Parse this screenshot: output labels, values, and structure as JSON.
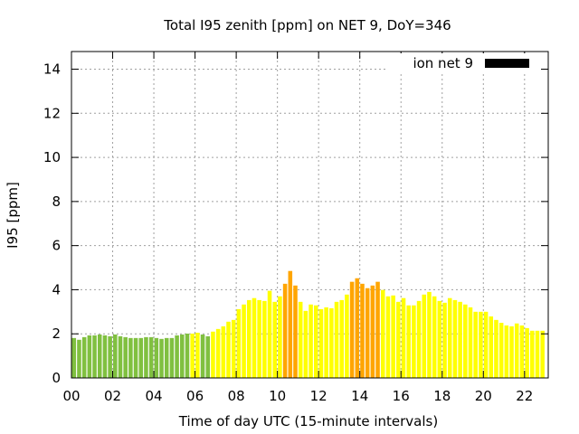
{
  "chart_data": {
    "type": "bar",
    "title": "Total I95 zenith [ppm] on NET 9, DoY=346",
    "xlabel": "Time of day UTC (15-minute intervals)",
    "ylabel": "I95 [ppm]",
    "ylim": [
      0,
      14.8
    ],
    "xlim_hours": [
      0,
      23.15
    ],
    "grid": true,
    "legend": {
      "label": "ion net 9",
      "placement": "top-right",
      "color": "#000000"
    },
    "yticks": [
      "0",
      "2",
      "4",
      "6",
      "8",
      "10",
      "12",
      "14"
    ],
    "xticks": [
      "00",
      "02",
      "04",
      "06",
      "08",
      "10",
      "12",
      "14",
      "16",
      "18",
      "20",
      "22"
    ],
    "interval_hours": 0.25,
    "palette": {
      "green": "#80c040",
      "yellow": "#ffff00",
      "orange": "#ffa500"
    },
    "values": [
      1.81,
      1.73,
      1.85,
      1.93,
      1.93,
      1.97,
      1.93,
      1.89,
      1.97,
      1.89,
      1.85,
      1.81,
      1.81,
      1.81,
      1.85,
      1.85,
      1.81,
      1.77,
      1.81,
      1.81,
      1.93,
      1.97,
      2.01,
      2.01,
      2.05,
      1.97,
      1.89,
      2.1,
      2.22,
      2.34,
      2.55,
      2.63,
      3.12,
      3.33,
      3.53,
      3.62,
      3.53,
      3.49,
      3.95,
      3.45,
      3.7,
      4.27,
      4.85,
      4.19,
      3.45,
      3.04,
      3.33,
      3.29,
      3.12,
      3.2,
      3.16,
      3.45,
      3.53,
      3.78,
      4.36,
      4.52,
      4.27,
      4.07,
      4.19,
      4.36,
      3.99,
      3.7,
      3.74,
      3.45,
      3.62,
      3.29,
      3.29,
      3.49,
      3.78,
      3.9,
      3.7,
      3.49,
      3.41,
      3.62,
      3.53,
      3.45,
      3.33,
      3.2,
      3.0,
      3.0,
      3.0,
      2.79,
      2.63,
      2.5,
      2.38,
      2.34,
      2.47,
      2.38,
      2.26,
      2.14,
      2.14,
      2.14
    ],
    "bar_colors": [
      "green",
      "green",
      "green",
      "green",
      "green",
      "green",
      "green",
      "green",
      "green",
      "green",
      "green",
      "green",
      "green",
      "green",
      "green",
      "green",
      "green",
      "green",
      "green",
      "green",
      "green",
      "green",
      "green",
      "yellow",
      "yellow",
      "green",
      "green",
      "yellow",
      "yellow",
      "yellow",
      "yellow",
      "yellow",
      "yellow",
      "yellow",
      "yellow",
      "yellow",
      "yellow",
      "yellow",
      "yellow",
      "yellow",
      "yellow",
      "orange",
      "orange",
      "orange",
      "yellow",
      "yellow",
      "yellow",
      "yellow",
      "yellow",
      "yellow",
      "yellow",
      "yellow",
      "yellow",
      "yellow",
      "orange",
      "orange",
      "orange",
      "orange",
      "orange",
      "orange",
      "yellow",
      "yellow",
      "yellow",
      "yellow",
      "yellow",
      "yellow",
      "yellow",
      "yellow",
      "yellow",
      "yellow",
      "yellow",
      "yellow",
      "yellow",
      "yellow",
      "yellow",
      "yellow",
      "yellow",
      "yellow",
      "yellow",
      "yellow",
      "yellow",
      "yellow",
      "yellow",
      "yellow",
      "yellow",
      "yellow",
      "yellow",
      "yellow",
      "yellow",
      "yellow",
      "yellow",
      "yellow"
    ]
  }
}
